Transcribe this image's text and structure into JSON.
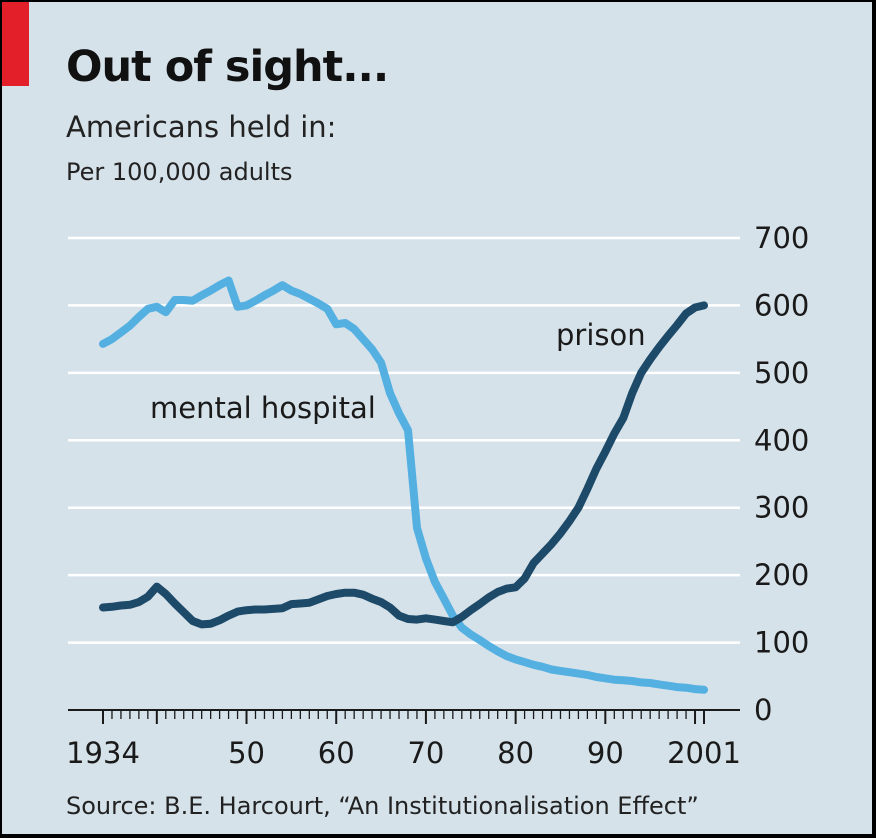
{
  "header": {
    "title": "Out of sight...",
    "subtitle": "Americans held in:",
    "unit": "Per 100,000 adults"
  },
  "footer": {
    "source": "Source: B.E. Harcourt, “An Institutionalisation Effect”"
  },
  "colors": {
    "background": "#d6e2ea",
    "accent_tag": "#e3202a",
    "prison": "#1d4a68",
    "mental_hospital": "#55b0e2",
    "gridline": "#ffffff"
  },
  "chart_data": {
    "type": "line",
    "title": "Out of sight...",
    "subtitle": "Americans held in:",
    "ylabel": "Per 100,000 adults",
    "xlim": [
      1934,
      2001
    ],
    "ylim": [
      0,
      700
    ],
    "y_ticks": [
      0,
      100,
      200,
      300,
      400,
      500,
      600,
      700
    ],
    "y_axis_side": "right",
    "x_tick_labels": [
      {
        "value": 1934,
        "label": "1934"
      },
      {
        "value": 1950,
        "label": "50"
      },
      {
        "value": 1960,
        "label": "60"
      },
      {
        "value": 1970,
        "label": "70"
      },
      {
        "value": 1980,
        "label": "80"
      },
      {
        "value": 1990,
        "label": "90"
      },
      {
        "value": 2001,
        "label": "2001"
      }
    ],
    "grid": true,
    "legend": "inline labels",
    "series": [
      {
        "name": "prison",
        "x": [
          1934,
          1935,
          1936,
          1937,
          1938,
          1939,
          1940,
          1941,
          1942,
          1943,
          1944,
          1945,
          1946,
          1947,
          1948,
          1949,
          1950,
          1951,
          1952,
          1953,
          1954,
          1955,
          1956,
          1957,
          1958,
          1959,
          1960,
          1961,
          1962,
          1963,
          1964,
          1965,
          1966,
          1967,
          1968,
          1969,
          1970,
          1971,
          1972,
          1973,
          1974,
          1975,
          1976,
          1977,
          1978,
          1979,
          1980,
          1981,
          1982,
          1983,
          1984,
          1985,
          1986,
          1987,
          1988,
          1989,
          1990,
          1991,
          1992,
          1993,
          1994,
          1995,
          1996,
          1997,
          1998,
          1999,
          2000,
          2001
        ],
        "values": [
          152,
          153,
          155,
          156,
          160,
          168,
          183,
          172,
          158,
          145,
          132,
          127,
          128,
          133,
          140,
          146,
          148,
          149,
          149,
          150,
          151,
          157,
          158,
          159,
          164,
          169,
          172,
          174,
          174,
          171,
          165,
          160,
          152,
          140,
          135,
          134,
          136,
          134,
          132,
          130,
          138,
          148,
          157,
          167,
          175,
          180,
          182,
          195,
          218,
          232,
          246,
          262,
          280,
          300,
          328,
          358,
          383,
          410,
          433,
          470,
          500,
          520,
          538,
          555,
          571,
          588,
          597,
          600
        ]
      },
      {
        "name": "mental hospital",
        "x": [
          1934,
          1935,
          1936,
          1937,
          1938,
          1939,
          1940,
          1941,
          1942,
          1943,
          1944,
          1945,
          1946,
          1947,
          1948,
          1949,
          1950,
          1951,
          1952,
          1953,
          1954,
          1955,
          1956,
          1957,
          1958,
          1959,
          1960,
          1961,
          1962,
          1963,
          1964,
          1965,
          1966,
          1967,
          1968,
          1969,
          1970,
          1971,
          1972,
          1973,
          1974,
          1975,
          1976,
          1977,
          1978,
          1979,
          1980,
          1981,
          1982,
          1983,
          1984,
          1985,
          1986,
          1987,
          1988,
          1989,
          1990,
          1991,
          1992,
          1993,
          1994,
          1995,
          1996,
          1997,
          1998,
          1999,
          2000,
          2001
        ],
        "values": [
          543,
          550,
          560,
          570,
          583,
          595,
          598,
          590,
          608,
          608,
          607,
          615,
          622,
          630,
          637,
          598,
          600,
          607,
          615,
          622,
          630,
          622,
          617,
          610,
          603,
          595,
          572,
          574,
          565,
          550,
          535,
          515,
          470,
          440,
          415,
          270,
          225,
          190,
          165,
          140,
          122,
          112,
          104,
          95,
          87,
          80,
          75,
          71,
          67,
          64,
          60,
          58,
          56,
          54,
          52,
          49,
          47,
          45,
          44,
          43,
          41,
          40,
          38,
          36,
          34,
          33,
          31,
          30
        ]
      }
    ]
  }
}
